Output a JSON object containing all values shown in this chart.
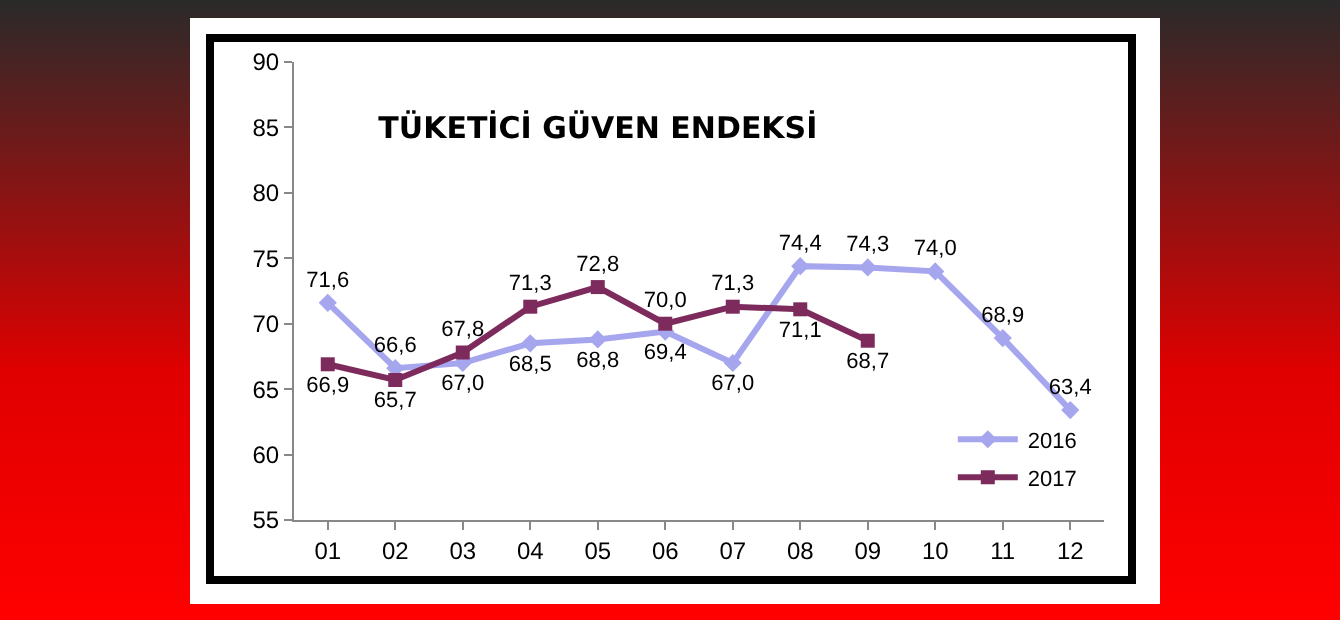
{
  "chart_data": {
    "type": "line",
    "title": "TÜKETİCİ GÜVEN ENDEKSİ",
    "categories": [
      "01",
      "02",
      "03",
      "04",
      "05",
      "06",
      "07",
      "08",
      "09",
      "10",
      "11",
      "12"
    ],
    "series": [
      {
        "name": "2016",
        "color": "#a6a6ee",
        "marker": "diamond",
        "values": [
          71.6,
          66.6,
          67.0,
          68.5,
          68.8,
          69.4,
          67.0,
          74.4,
          74.3,
          74.0,
          68.9,
          63.4
        ],
        "value_labels": [
          "71,6",
          "66,6",
          "67,0",
          "68,5",
          "68,8",
          "69,4",
          "67,0",
          "74,4",
          "74,3",
          "74,0",
          "68,9",
          "63,4"
        ]
      },
      {
        "name": "2017",
        "color": "#7d2b5c",
        "marker": "square",
        "values": [
          66.9,
          65.7,
          67.8,
          71.3,
          72.8,
          70.0,
          71.3,
          71.1,
          68.7,
          null,
          null,
          null
        ],
        "value_labels": [
          "66,9",
          "65,7",
          "67,8",
          "71,3",
          "72,8",
          "70,0",
          "71,3",
          "71,1",
          "68,7",
          null,
          null,
          null
        ]
      }
    ],
    "ylim": [
      55,
      90
    ],
    "yticks": [
      55,
      60,
      65,
      70,
      75,
      80,
      85,
      90
    ],
    "grid": false,
    "legend": "bottom right"
  }
}
